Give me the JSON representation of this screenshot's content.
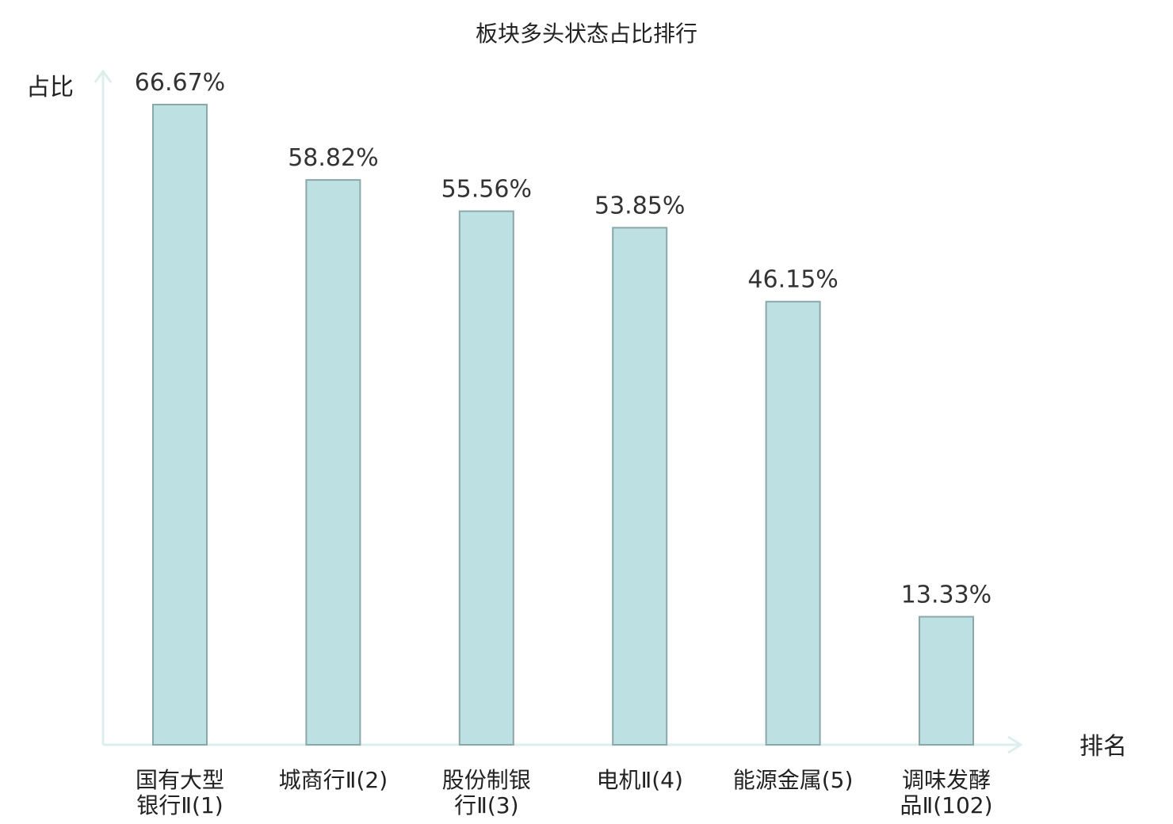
{
  "chart_data": {
    "type": "bar",
    "title": "板块多头状态占比排行",
    "ylabel": "占比",
    "xlabel": "排名",
    "ylim": [
      0,
      70
    ],
    "grid": false,
    "value_unit": "%",
    "categories": [
      [
        "国有大型",
        "银行Ⅱ(1)"
      ],
      [
        "城商行Ⅱ(2)"
      ],
      [
        "股份制银",
        "行Ⅱ(3)"
      ],
      [
        "电机Ⅱ(4)"
      ],
      [
        "能源金属(5)"
      ],
      [
        "调味发酵",
        "品Ⅱ(102)"
      ]
    ],
    "values": [
      66.67,
      58.82,
      55.56,
      53.85,
      46.15,
      13.33
    ],
    "value_labels": [
      "66.67%",
      "58.82%",
      "55.56%",
      "53.85%",
      "46.15%",
      "13.33%"
    ],
    "highlight_index": 5,
    "colors": {
      "bar_fill": "#bde0e3",
      "bar_stroke": "#8aa8aa",
      "axis": "#dcefec",
      "highlight_label": "#e8000b",
      "text": "#222222"
    }
  }
}
